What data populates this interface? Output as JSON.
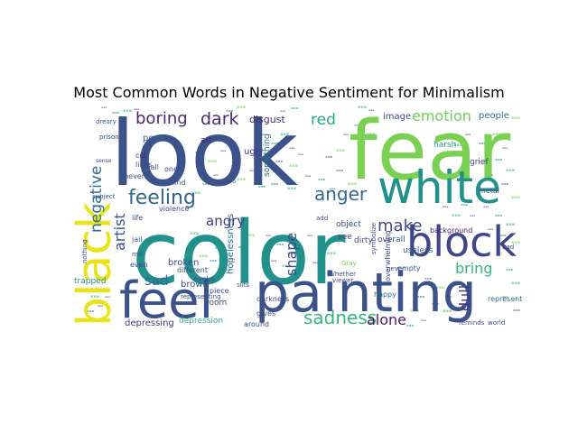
{
  "chart_data": {
    "type": "wordcloud",
    "title": "Most Common Words in Negative Sentiment for Minimalism",
    "colormap": "viridis",
    "background": "#ffffff",
    "words": [
      {
        "text": "look",
        "weight": 100,
        "color": "#3b528b"
      },
      {
        "text": "fear",
        "weight": 90,
        "color": "#7ad151"
      },
      {
        "text": "color",
        "weight": 95,
        "color": "#21918c"
      },
      {
        "text": "painting",
        "weight": 70,
        "color": "#3b528b"
      },
      {
        "text": "feel",
        "weight": 62,
        "color": "#3b528b"
      },
      {
        "text": "white",
        "weight": 55,
        "color": "#21918c"
      },
      {
        "text": "block",
        "weight": 50,
        "color": "#404688"
      },
      {
        "text": "black",
        "weight": 50,
        "color": "#e8e419"
      },
      {
        "text": "feeling",
        "weight": 20,
        "color": "#31688e"
      },
      {
        "text": "anger",
        "weight": 18,
        "color": "#31688e"
      },
      {
        "text": "sadness",
        "weight": 18,
        "color": "#35b779"
      },
      {
        "text": "boring",
        "weight": 17,
        "color": "#482878"
      },
      {
        "text": "dark",
        "weight": 17,
        "color": "#472d7b"
      },
      {
        "text": "negative",
        "weight": 16,
        "color": "#2c728e"
      },
      {
        "text": "make",
        "weight": 17,
        "color": "#3e4989"
      },
      {
        "text": "emotion",
        "weight": 14,
        "color": "#6ece58"
      },
      {
        "text": "red",
        "weight": 15,
        "color": "#26ad81"
      },
      {
        "text": "alone",
        "weight": 15,
        "color": "#481a6c"
      },
      {
        "text": "artist",
        "weight": 15,
        "color": "#3b528b"
      },
      {
        "text": "shape",
        "weight": 14,
        "color": "#3e4989"
      },
      {
        "text": "bring",
        "weight": 14,
        "color": "#35b779"
      },
      {
        "text": "dull",
        "weight": 14,
        "color": "#46327e"
      },
      {
        "text": "angry",
        "weight": 13,
        "color": "#443983"
      },
      {
        "text": "sad",
        "weight": 13,
        "color": "#31688e"
      },
      {
        "text": "disgust",
        "weight": 10,
        "color": "#472d7b"
      },
      {
        "text": "image",
        "weight": 9,
        "color": "#3e4989"
      },
      {
        "text": "people",
        "weight": 9,
        "color": "#2c728e"
      },
      {
        "text": "brown",
        "weight": 9,
        "color": "#3b528b"
      },
      {
        "text": "depressing",
        "weight": 9,
        "color": "#46327e"
      },
      {
        "text": "depression",
        "weight": 8,
        "color": "#35b779"
      },
      {
        "text": "broken",
        "weight": 9,
        "color": "#3e4989"
      },
      {
        "text": "hopelessness",
        "weight": 9,
        "color": "#2c728e"
      },
      {
        "text": "ugly",
        "weight": 9,
        "color": "#443983"
      },
      {
        "text": "poor",
        "weight": 9,
        "color": "#31688e"
      },
      {
        "text": "something",
        "weight": 8,
        "color": "#2c728e"
      },
      {
        "text": "object",
        "weight": 8,
        "color": "#3e4989"
      },
      {
        "text": "harsh",
        "weight": 8,
        "color": "#22a884"
      },
      {
        "text": "grief",
        "weight": 8,
        "color": "#414487"
      },
      {
        "text": "metal",
        "weight": 7,
        "color": "#3b528b"
      },
      {
        "text": "overall",
        "weight": 8,
        "color": "#3e4989"
      },
      {
        "text": "useless",
        "weight": 8,
        "color": "#355f8d"
      },
      {
        "text": "background",
        "weight": 7,
        "color": "#48186a"
      },
      {
        "text": "dirty",
        "weight": 8,
        "color": "#414487"
      },
      {
        "text": "see",
        "weight": 8,
        "color": "#3e4989"
      },
      {
        "text": "empty",
        "weight": 7,
        "color": "#3b528b"
      },
      {
        "text": "happy",
        "weight": 7,
        "color": "#2c728e"
      },
      {
        "text": "darkness",
        "weight": 7,
        "color": "#3e4989"
      },
      {
        "text": "room",
        "weight": 8,
        "color": "#3b528b"
      },
      {
        "text": "piece",
        "weight": 7,
        "color": "#3e4989"
      },
      {
        "text": "gives",
        "weight": 7,
        "color": "#3b528b"
      },
      {
        "text": "around",
        "weight": 7,
        "color": "#3e4989"
      },
      {
        "text": "art",
        "weight": 8,
        "color": "#482878"
      },
      {
        "text": "wall",
        "weight": 7,
        "color": "#3b528b"
      },
      {
        "text": "lines",
        "weight": 7,
        "color": "#3e4989"
      },
      {
        "text": "cut",
        "weight": 7,
        "color": "#472d7b"
      },
      {
        "text": "uneven",
        "weight": 7,
        "color": "#3b528b"
      },
      {
        "text": "one",
        "weight": 7,
        "color": "#3e4989"
      },
      {
        "text": "behind",
        "weight": 7,
        "color": "#3b528b"
      },
      {
        "text": "life",
        "weight": 7,
        "color": "#3e4989"
      },
      {
        "text": "jail",
        "weight": 7,
        "color": "#3b528b"
      },
      {
        "text": "violence",
        "weight": 7,
        "color": "#3e4989"
      },
      {
        "text": "different",
        "weight": 7,
        "color": "#3b528b"
      },
      {
        "text": "evoke",
        "weight": 7,
        "color": "#3e4989"
      },
      {
        "text": "even",
        "weight": 7,
        "color": "#3e4989"
      },
      {
        "text": "mill",
        "weight": 6,
        "color": "#3b528b"
      },
      {
        "text": "trapped",
        "weight": 7,
        "color": "#21918c"
      },
      {
        "text": "nothing",
        "weight": 6,
        "color": "#3b528b"
      },
      {
        "text": "overwhelming",
        "weight": 7,
        "color": "#3e4989"
      },
      {
        "text": "never",
        "weight": 6,
        "color": "#3b528b"
      },
      {
        "text": "represent",
        "weight": 7,
        "color": "#2c728e"
      },
      {
        "text": "reminds",
        "weight": 6,
        "color": "#3e4989"
      },
      {
        "text": "world",
        "weight": 6,
        "color": "#3b528b"
      },
      {
        "text": "viewer",
        "weight": 6,
        "color": "#3e4989"
      },
      {
        "text": "Whether",
        "weight": 6,
        "color": "#3b528b"
      },
      {
        "text": "slits",
        "weight": 6,
        "color": "#3e4989"
      },
      {
        "text": "representing",
        "weight": 6,
        "color": "#3b528b"
      },
      {
        "text": "symbolize",
        "weight": 6,
        "color": "#3e4989"
      },
      {
        "text": "subject",
        "weight": 6,
        "color": "#3b528b"
      },
      {
        "text": "prison",
        "weight": 6,
        "color": "#3e4989"
      },
      {
        "text": "dreary",
        "weight": 6,
        "color": "#3b528b"
      },
      {
        "text": "bad",
        "weight": 6,
        "color": "#3e4989"
      },
      {
        "text": "Gray",
        "weight": 6,
        "color": "#7ad151"
      },
      {
        "text": "add",
        "weight": 5,
        "color": "#3e4989"
      },
      {
        "text": "two",
        "weight": 5,
        "color": "#3b528b"
      },
      {
        "text": "sense",
        "weight": 5,
        "color": "#3e4989"
      }
    ]
  }
}
